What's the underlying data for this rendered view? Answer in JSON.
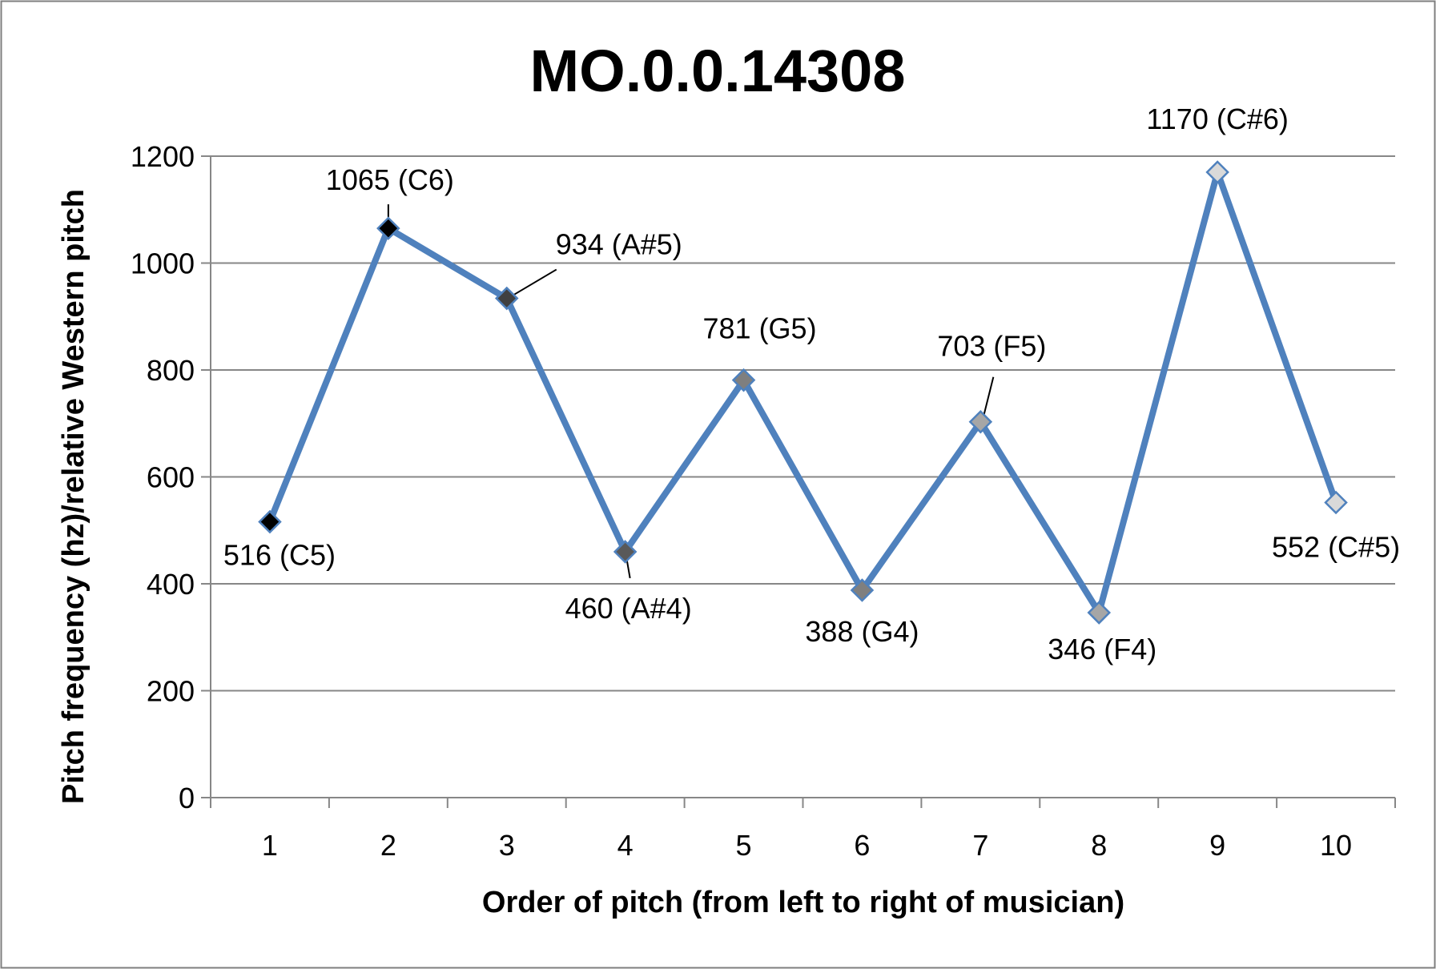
{
  "chart_data": {
    "type": "line",
    "title": "MO.0.0.14308",
    "xlabel": "Order of pitch (from left to right of musician)",
    "ylabel": "Pitch frequency (hz)/relative Western pitch",
    "categories": [
      "1",
      "2",
      "3",
      "4",
      "5",
      "6",
      "7",
      "8",
      "9",
      "10"
    ],
    "ylim": [
      0,
      1200
    ],
    "yticks": [
      "0",
      "200",
      "400",
      "600",
      "800",
      "1000",
      "1200"
    ],
    "grid": true,
    "legend": "none",
    "line_color": "#4F81BD",
    "series": [
      {
        "values": [
          516,
          1065,
          934,
          460,
          781,
          388,
          703,
          346,
          1170,
          552
        ],
        "marker_colors": [
          "#000000",
          "#000000",
          "#404040",
          "#595959",
          "#7F7F7F",
          "#7F7F7F",
          "#A6A6A6",
          "#A6A6A6",
          "#D9D9D9",
          "#D9D9D9"
        ],
        "labels": [
          "516 (C5)",
          "1065 (C6)",
          "934 (A#5)",
          "460 (A#4)",
          "781 (G5)",
          "388 (G4)",
          "703 (F5)",
          "346 (F4)",
          "1170 (C#6)",
          "552 (C#5)"
        ]
      }
    ]
  }
}
